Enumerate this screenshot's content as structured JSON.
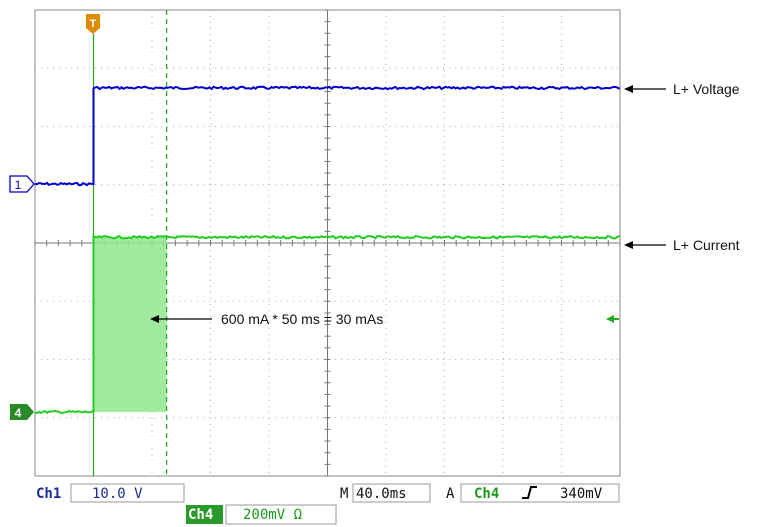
{
  "annotations": {
    "voltage": "L+ Voltage",
    "current": "L+ Current",
    "charge": "600 mA * 50 ms = 30 mAs"
  },
  "markers": {
    "ch1": "1",
    "ch4": "4",
    "trigger": "T"
  },
  "readouts": {
    "ch1_label": "Ch1",
    "ch1_scale": "10.0 V",
    "time_prefix": "M",
    "time_scale": "40.0ms",
    "trigger_prefix": "A",
    "trigger_source": "Ch4",
    "trigger_slope_icon": "rising-edge-icon",
    "trigger_level": "340mV",
    "ch4_label": "Ch4",
    "ch4_scale": "200mV Ω"
  },
  "colors": {
    "ch1": "#0000cc",
    "ch4": "#22cc22",
    "fill": "#8fe88f",
    "trigger": "#e08a00",
    "grid": "#b0b0b0",
    "readout_text": "#1a2a9a"
  },
  "chart_data": {
    "type": "line",
    "x_unit": "s",
    "x_per_div": 0.04,
    "xlim": [
      0,
      0.4
    ],
    "divisions": {
      "x": 10,
      "y": 8
    },
    "grid": true,
    "series": [
      {
        "name": "L+ Voltage",
        "channel": "Ch1",
        "volts_per_div": 10.0,
        "x": [
          0,
          0.04,
          0.04,
          0.4
        ],
        "y": [
          0,
          0,
          16.5,
          16.5
        ]
      },
      {
        "name": "L+ Current",
        "channel": "Ch4",
        "volts_per_div": 0.2,
        "x": [
          0,
          0.04,
          0.04,
          0.4
        ],
        "y": [
          0,
          0,
          0.6,
          0.6
        ]
      }
    ],
    "shaded_region": {
      "x": [
        0.04,
        0.09
      ],
      "value": 0.6
    },
    "cursor_x": 0.09,
    "trigger_x": 0.04
  }
}
